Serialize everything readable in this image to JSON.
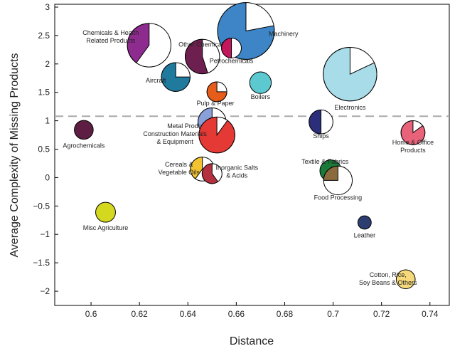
{
  "chart_data": {
    "type": "scatter",
    "title": "",
    "xlabel": "Distance",
    "ylabel": "Average Complexity of Missing Products",
    "xlim": [
      0.585,
      0.748
    ],
    "ylim": [
      -2.25,
      3.05
    ],
    "xticks": [
      0.6,
      0.62,
      0.64,
      0.66,
      0.68,
      0.7,
      0.72,
      0.74
    ],
    "yticks": [
      -2,
      -1.5,
      -1,
      -0.5,
      0,
      0.5,
      1,
      1.5,
      2,
      2.5,
      3
    ],
    "xtick_labels": [
      "0.6",
      "0.62",
      "0.64",
      "0.66",
      "0.68",
      "0.7",
      "0.72",
      "0.74"
    ],
    "ytick_labels": [
      "−2",
      "−1.5",
      "−1",
      "−0.5",
      "0",
      "0.5",
      "1",
      "1.5",
      "2",
      "2.5",
      "3"
    ],
    "threshold_line": 1.08,
    "grid": false,
    "points": [
      {
        "label_lines": [
          "Machinery"
        ],
        "x": 0.664,
        "y": 2.58,
        "size": 9.0,
        "share": 0.78,
        "color": "#3d85c6"
      },
      {
        "label_lines": [
          "Chemicals & Health",
          "Related Products"
        ],
        "x": 0.624,
        "y": 2.33,
        "size": 5.3,
        "share": 0.4,
        "color": "#8e2b8e"
      },
      {
        "label_lines": [
          "Other Chemicals"
        ],
        "x": 0.646,
        "y": 2.13,
        "size": 3.3,
        "share": 0.55,
        "color": "#6d1f4f"
      },
      {
        "label_lines": [
          "Petrochemicals"
        ],
        "x": 0.658,
        "y": 2.28,
        "size": 1.1,
        "share": 0.5,
        "color": "#c2185b"
      },
      {
        "label_lines": [
          "Aircraft"
        ],
        "x": 0.635,
        "y": 1.77,
        "size": 2.3,
        "share": 0.75,
        "color": "#1f7a9e"
      },
      {
        "label_lines": [
          "Pulp & Paper"
        ],
        "x": 0.652,
        "y": 1.51,
        "size": 1.1,
        "share": 0.75,
        "color": "#e65c1a"
      },
      {
        "label_lines": [
          "Boilers"
        ],
        "x": 0.67,
        "y": 1.67,
        "size": 1.3,
        "share": 1.0,
        "color": "#5cc8cf"
      },
      {
        "label_lines": [
          "Electronics"
        ],
        "x": 0.707,
        "y": 1.82,
        "size": 8.0,
        "share": 0.82,
        "color": "#a8dce8"
      },
      {
        "label_lines": [
          "Agrochemicals"
        ],
        "x": 0.597,
        "y": 0.84,
        "size": 1.0,
        "share": 1.0,
        "color": "#5e1e44"
      },
      {
        "label_lines": [
          "Metal Products"
        ],
        "x": 0.65,
        "y": 0.98,
        "size": 2.2,
        "share": 0.55,
        "color": "#8aa0d8"
      },
      {
        "label_lines": [
          "Construction Materials",
          "& Equipment"
        ],
        "x": 0.652,
        "y": 0.75,
        "size": 3.6,
        "share": 0.9,
        "color": "#e53935"
      },
      {
        "label_lines": [
          "Cereals &",
          "Vegetable Oils"
        ],
        "x": 0.646,
        "y": 0.15,
        "size": 1.6,
        "share": 0.4,
        "color": "#f2c230"
      },
      {
        "label_lines": [
          "Inorganic Salts",
          "& Acids"
        ],
        "x": 0.65,
        "y": 0.07,
        "size": 1.1,
        "share": 0.6,
        "color": "#b5303e"
      },
      {
        "label_lines": [
          "Ships"
        ],
        "x": 0.695,
        "y": 0.98,
        "size": 1.6,
        "share": 0.5,
        "color": "#2b2f7a"
      },
      {
        "label_lines": [
          "Textile & Fabrics"
        ],
        "x": 0.699,
        "y": 0.12,
        "size": 1.3,
        "share": 1.0,
        "color": "#1a7a3a"
      },
      {
        "label_lines": [
          "Food Processing"
        ],
        "x": 0.702,
        "y": -0.05,
        "size": 2.3,
        "share": 0.25,
        "color": "#8b6a3e"
      },
      {
        "label_lines": [
          "Home & Office",
          "Products"
        ],
        "x": 0.733,
        "y": 0.79,
        "size": 1.6,
        "share": 0.85,
        "color": "#e8637a"
      },
      {
        "label_lines": [
          "Misc Agriculture"
        ],
        "x": 0.606,
        "y": -0.61,
        "size": 1.1,
        "share": 1.0,
        "color": "#d4d81f"
      },
      {
        "label_lines": [
          "Leather"
        ],
        "x": 0.713,
        "y": -0.79,
        "size": 0.5,
        "share": 1.0,
        "color": "#2c3e70"
      },
      {
        "label_lines": [
          "Cotton, Rice,",
          "Soy Beans & Others"
        ],
        "x": 0.73,
        "y": -1.79,
        "size": 1.0,
        "share": 1.0,
        "color": "#f5d97a"
      }
    ]
  }
}
